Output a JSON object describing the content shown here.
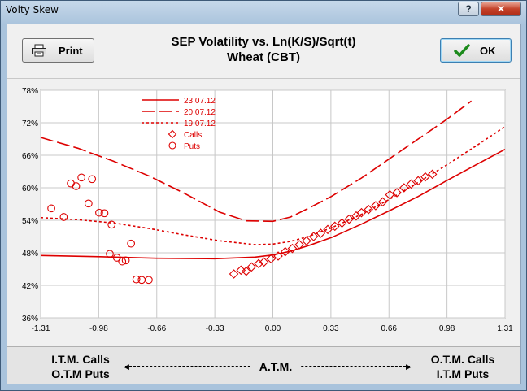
{
  "window": {
    "title": "Volty Skew",
    "help_label": "?",
    "close_label": "✕"
  },
  "header": {
    "print_label": "Print",
    "ok_label": "OK",
    "title_line1": "SEP Volatility vs. Ln(K/S)/Sqrt(t)",
    "title_line2": "Wheat (CBT)",
    "print_icon": "printer-icon",
    "ok_icon": "checkmark-icon"
  },
  "footer": {
    "left_line1": "I.T.M. Calls",
    "left_line2": "O.T.M Puts",
    "center": "A.T.M.",
    "right_line1": "O.T.M. Calls",
    "right_line2": "I.T.M Puts"
  },
  "colors": {
    "series": "#dd0000",
    "grid": "#c8c8c8"
  },
  "chart_data": {
    "type": "scatter",
    "xlim": [
      -1.31,
      1.31
    ],
    "ylim": [
      36,
      78
    ],
    "xticks": [
      "-1.31",
      "-0.98",
      "-0.66",
      "-0.33",
      "0.00",
      "0.33",
      "0.66",
      "0.98",
      "1.31"
    ],
    "yticks": [
      "36%",
      "42%",
      "48%",
      "54%",
      "60%",
      "66%",
      "72%",
      "78%"
    ],
    "grid": true,
    "legend_position": "top-left",
    "series": [
      {
        "name": "23.07.12",
        "kind": "solid-line",
        "x": [
          -1.31,
          -1.0,
          -0.66,
          -0.33,
          -0.1,
          0.0,
          0.1,
          0.2,
          0.33,
          0.5,
          0.66,
          0.82,
          0.98,
          1.15,
          1.31
        ],
        "y": [
          47.5,
          47.3,
          47.0,
          46.9,
          47.2,
          47.6,
          48.3,
          49.3,
          50.8,
          53.3,
          55.8,
          58.4,
          61.3,
          64.3,
          67.1
        ]
      },
      {
        "name": "20.07.12",
        "kind": "long-dash-line",
        "x": [
          -1.31,
          -1.1,
          -0.9,
          -0.7,
          -0.5,
          -0.3,
          -0.15,
          0.0,
          0.1,
          0.2,
          0.33,
          0.5,
          0.66,
          0.82,
          0.98,
          1.12
        ],
        "y": [
          69.3,
          67.3,
          64.9,
          62.2,
          59.0,
          55.5,
          53.9,
          53.8,
          54.6,
          56.2,
          58.4,
          61.8,
          65.4,
          69.0,
          72.6,
          76.0
        ]
      },
      {
        "name": "19.07.12",
        "kind": "short-dash-line",
        "x": [
          -1.31,
          -1.1,
          -0.9,
          -0.7,
          -0.5,
          -0.3,
          -0.1,
          0.0,
          0.1,
          0.2,
          0.33,
          0.5,
          0.66,
          0.82,
          0.98,
          1.15,
          1.31
        ],
        "y": [
          54.5,
          54.1,
          53.5,
          52.5,
          51.3,
          50.2,
          49.5,
          49.6,
          50.1,
          51.0,
          52.6,
          55.1,
          57.9,
          61.0,
          64.2,
          67.8,
          71.3
        ]
      },
      {
        "name": "Calls",
        "kind": "diamond-markers",
        "x": [
          -0.22,
          -0.18,
          -0.15,
          -0.12,
          -0.08,
          -0.05,
          -0.01,
          0.03,
          0.07,
          0.11,
          0.15,
          0.19,
          0.23,
          0.27,
          0.31,
          0.35,
          0.39,
          0.43,
          0.47,
          0.5,
          0.54,
          0.58,
          0.62,
          0.66,
          0.7,
          0.74,
          0.78,
          0.82,
          0.86,
          0.9
        ],
        "y": [
          44.1,
          44.8,
          44.6,
          45.4,
          46.0,
          46.3,
          46.9,
          47.4,
          48.2,
          48.8,
          49.5,
          50.2,
          51.0,
          51.6,
          52.3,
          52.9,
          53.5,
          54.2,
          54.8,
          55.4,
          56.0,
          56.7,
          57.4,
          58.7,
          59.1,
          60.0,
          60.7,
          61.3,
          62.0,
          62.5
        ]
      },
      {
        "name": "Puts",
        "kind": "circle-markers",
        "x": [
          -1.25,
          -1.18,
          -1.14,
          -1.11,
          -1.08,
          -1.04,
          -1.02,
          -0.98,
          -0.95,
          -0.92,
          -0.91,
          -0.88,
          -0.85,
          -0.83,
          -0.8,
          -0.77,
          -0.74,
          -0.7
        ],
        "y": [
          56.2,
          54.6,
          60.8,
          60.3,
          61.9,
          57.1,
          61.6,
          55.4,
          55.3,
          47.8,
          53.2,
          47.1,
          46.4,
          46.6,
          49.7,
          43.1,
          43.0,
          43.0
        ]
      }
    ]
  }
}
